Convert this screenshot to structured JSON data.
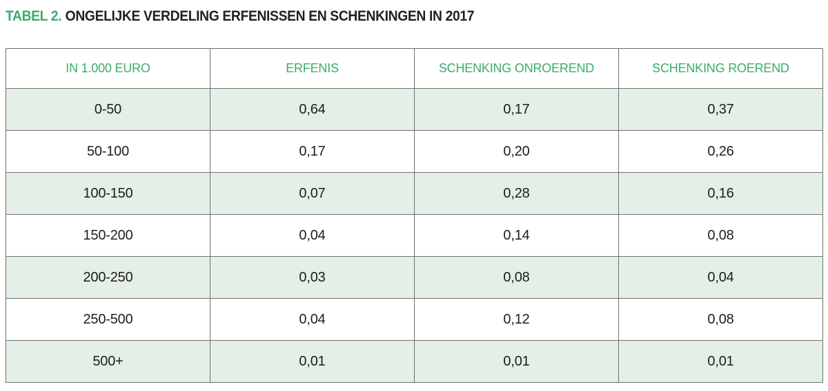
{
  "title": {
    "prefix": "TABEL 2.",
    "text": "ONGELIJKE VERDELING ERFENISSEN EN SCHENKINGEN IN 2017"
  },
  "colors": {
    "accent_green": "#3cab6d",
    "row_green": "#e4efe6",
    "border_gray": "#6f6f6f",
    "text_dark": "#1d1d1b"
  },
  "table": {
    "headers": [
      "IN 1.000 EURO",
      "ERFENIS",
      "SCHENKING ONROEREND",
      "SCHENKING ROEREND"
    ],
    "rows": [
      [
        "0-50",
        "0,64",
        "0,17",
        "0,37"
      ],
      [
        "50-100",
        "0,17",
        "0,20",
        "0,26"
      ],
      [
        "100-150",
        "0,07",
        "0,28",
        "0,16"
      ],
      [
        "150-200",
        "0,04",
        "0,14",
        "0,08"
      ],
      [
        "200-250",
        "0,03",
        "0,08",
        "0,04"
      ],
      [
        "250-500",
        "0,04",
        "0,12",
        "0,08"
      ],
      [
        "500+",
        "0,01",
        "0,01",
        "0,01"
      ]
    ]
  },
  "chart_data": {
    "type": "table",
    "title": "TABEL 2. ONGELIJKE VERDELING ERFENISSEN EN SCHENKINGEN IN 2017",
    "columns": [
      "IN 1.000 EURO",
      "ERFENIS",
      "SCHENKING ONROEREND",
      "SCHENKING ROEREND"
    ],
    "categories": [
      "0-50",
      "50-100",
      "100-150",
      "150-200",
      "200-250",
      "250-500",
      "500+"
    ],
    "series": [
      {
        "name": "ERFENIS",
        "values": [
          0.64,
          0.17,
          0.07,
          0.04,
          0.03,
          0.04,
          0.01
        ]
      },
      {
        "name": "SCHENKING ONROEREND",
        "values": [
          0.17,
          0.2,
          0.28,
          0.14,
          0.08,
          0.12,
          0.01
        ]
      },
      {
        "name": "SCHENKING ROEREND",
        "values": [
          0.37,
          0.26,
          0.16,
          0.08,
          0.04,
          0.08,
          0.01
        ]
      }
    ]
  }
}
